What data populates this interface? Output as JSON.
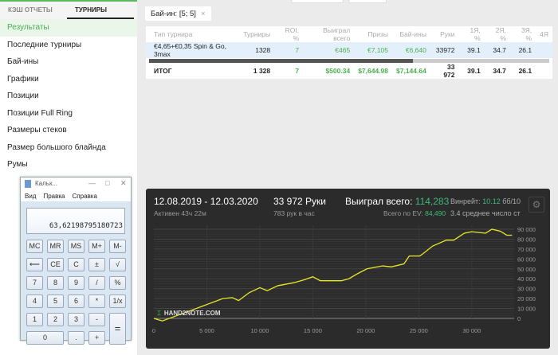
{
  "sidebar": {
    "tabs": [
      "КЭШ ОТЧЕТЫ",
      "ТУРНИРЫ"
    ],
    "items": [
      "Результаты",
      "Последние турниры",
      "Бай-ины",
      "Графики",
      "Позиции",
      "Позиции Full Ring",
      "Размеры стеков",
      "Размер большого блайнда",
      "Румы"
    ]
  },
  "filter": {
    "label": "Бай-ин: [5; 5]",
    "close": "×"
  },
  "table": {
    "headers": [
      "Тип турнира",
      "Турниры",
      "ROI, %",
      "Выиграл всего",
      "Призы",
      "Бай-ины",
      "Руки",
      "1Я, %",
      "2Я, %",
      "3Я, %",
      "4Я"
    ],
    "row": [
      "€4,65+€0,35 Spin & Go, 3max",
      "1328",
      "7",
      "€465",
      "€7,105",
      "€6,640",
      "33972",
      "39.1",
      "34.7",
      "26.1",
      ""
    ],
    "total": [
      "ИТОГ",
      "1 328",
      "7",
      "$500.34",
      "$7,644.98",
      "$7,144.64",
      "33 972",
      "39.1",
      "34.7",
      "26.1",
      ""
    ],
    "scroll_position": 0.66
  },
  "calculator": {
    "title": "Кальк...",
    "menu": [
      "Вид",
      "Правка",
      "Справка"
    ],
    "display": "63,62198795180723",
    "buttons": [
      "MC",
      "MR",
      "MS",
      "M+",
      "M-",
      "⟵",
      "CE",
      "C",
      "±",
      "√",
      "7",
      "8",
      "9",
      "/",
      "%",
      "4",
      "5",
      "6",
      "*",
      "1/x",
      "1",
      "2",
      "3",
      "-",
      "=",
      "0",
      ".",
      "+"
    ]
  },
  "summary": {
    "dates": "12.08.2019 - 12.03.2020",
    "active": "Активен 43ч 22м",
    "hands": "33 972 Руки",
    "hands_per_hour": "783 рук в час",
    "won_label": "Выиграл всего:",
    "won_value": "114,283",
    "ev_label": "Всего по EV:",
    "ev_value": "84,490",
    "winrate_label": "Винрейт:",
    "winrate_value": "10.12",
    "winrate_unit": "бб/10",
    "avg": "3.4 среднее число ст",
    "watermark": "HAND2NOTE.COM"
  },
  "chart_data": {
    "type": "line",
    "xlim": [
      0,
      34000
    ],
    "ylim": [
      0,
      90000
    ],
    "grid": true,
    "line_color": "#e8e82a",
    "x_ticks": [
      "0",
      "5 000",
      "10 000",
      "15 000",
      "20 000",
      "25 000",
      "30 000"
    ],
    "y_ticks": [
      "0",
      "10 000",
      "20 000",
      "30 000",
      "40 000",
      "50 000",
      "60 000",
      "70 000",
      "80 000",
      "90 000"
    ],
    "x": [
      0,
      800,
      4000,
      5000,
      6500,
      7400,
      8000,
      9000,
      10000,
      10700,
      11700,
      13200,
      14200,
      15000,
      15700,
      17700,
      18400,
      19200,
      20100,
      21600,
      22400,
      23600,
      24100,
      25100,
      25600,
      26300,
      27600,
      28300,
      29300,
      30000,
      31300,
      31900,
      32700,
      33300,
      33800
    ],
    "y": [
      0,
      -2600,
      10000,
      14000,
      20000,
      21000,
      18000,
      26000,
      31000,
      28000,
      33000,
      36000,
      39000,
      42000,
      38000,
      38000,
      40000,
      45000,
      50000,
      53000,
      52000,
      55000,
      63000,
      63000,
      67000,
      73000,
      79000,
      79000,
      86000,
      87500,
      86000,
      90000,
      88000,
      84000,
      84000
    ]
  }
}
